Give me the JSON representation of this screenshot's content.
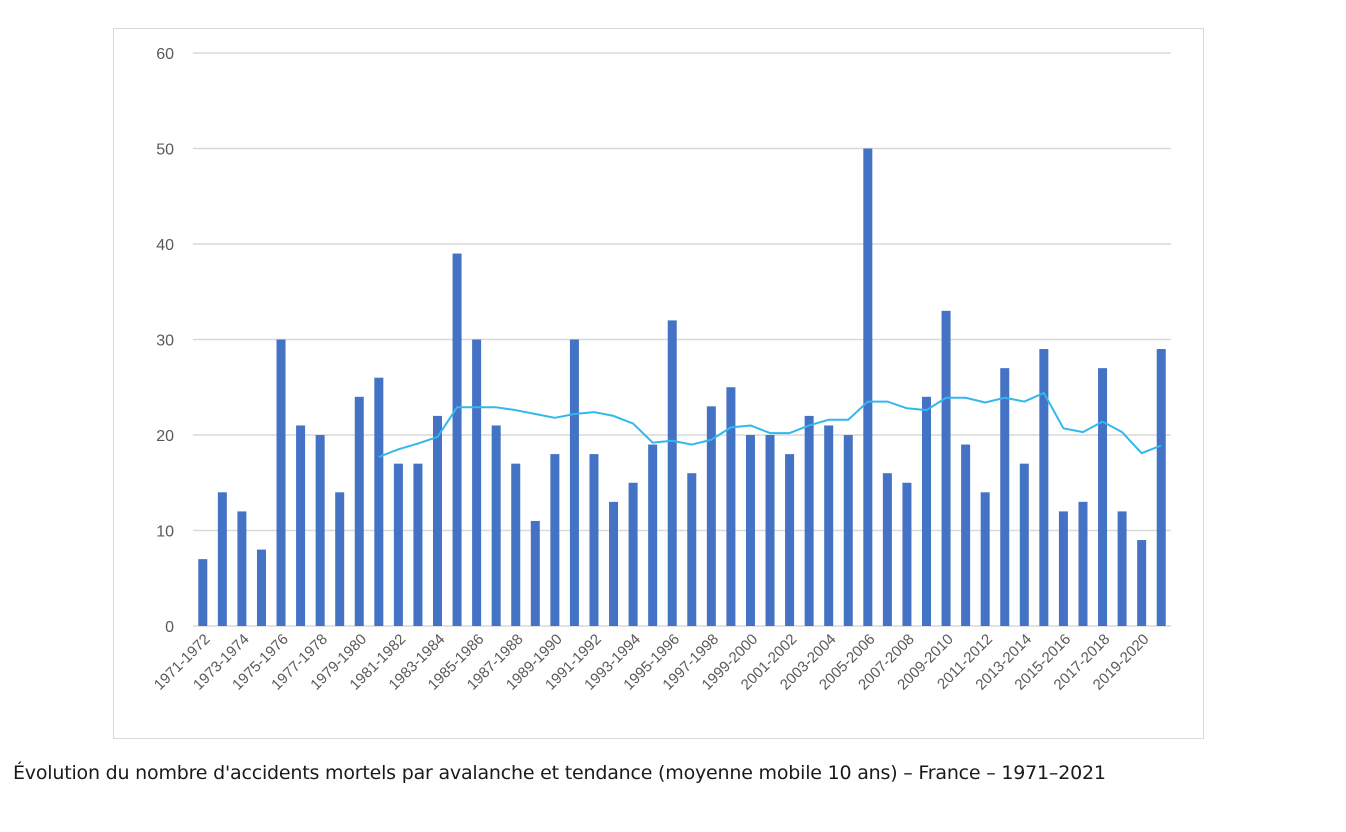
{
  "caption": "Évolution du nombre d'accidents mortels par avalanche et tendance (moyenne mobile 10 ans) – France – 1971–2021",
  "colors": {
    "bars": "#4472c4",
    "trend": "#31b8ef",
    "grid": "#d9d9d9",
    "text": "#595959"
  },
  "chart_data": {
    "type": "bar",
    "title": "",
    "xlabel": "",
    "ylabel": "",
    "ylim": [
      0,
      60
    ],
    "yticks": [
      "0",
      "10",
      "20",
      "30",
      "40",
      "50",
      "60"
    ],
    "grid": true,
    "legend": "none",
    "categories": [
      "1971-1972",
      "1972-1973",
      "1973-1974",
      "1974-1975",
      "1975-1976",
      "1976-1977",
      "1977-1978",
      "1978-1979",
      "1979-1980",
      "1980-1981",
      "1981-1982",
      "1982-1983",
      "1983-1984",
      "1984-1985",
      "1985-1986",
      "1986-1987",
      "1987-1988",
      "1988-1989",
      "1989-1990",
      "1990-1991",
      "1991-1992",
      "1992-1993",
      "1993-1994",
      "1994-1995",
      "1995-1996",
      "1996-1997",
      "1997-1998",
      "1998-1999",
      "1999-2000",
      "2000-2001",
      "2001-2002",
      "2002-2003",
      "2003-2004",
      "2004-2005",
      "2005-2006",
      "2006-2007",
      "2007-2008",
      "2008-2009",
      "2009-2010",
      "2010-2011",
      "2011-2012",
      "2012-2013",
      "2013-2014",
      "2014-2015",
      "2015-2016",
      "2016-2017",
      "2017-2018",
      "2018-2019",
      "2019-2020",
      "2020-2021"
    ],
    "tick_labels_shown": [
      "1971-1972",
      "1973-1974",
      "1975-1976",
      "1977-1978",
      "1979-1980",
      "1981-1982",
      "1983-1984",
      "1985-1986",
      "1987-1988",
      "1989-1990",
      "1991-1992",
      "1993-1994",
      "1995-1996",
      "1997-1998",
      "1999-2000",
      "2001-2002",
      "2003-2004",
      "2005-2006",
      "2007-2008",
      "2009-2010",
      "2011-2012",
      "2013-2014",
      "2015-2016",
      "2017-2018",
      "2019-2020"
    ],
    "series": [
      {
        "name": "Accidents mortels",
        "type": "bar",
        "values": [
          7,
          14,
          12,
          8,
          30,
          21,
          20,
          14,
          24,
          26,
          17,
          17,
          22,
          39,
          30,
          21,
          17,
          11,
          18,
          30,
          18,
          13,
          15,
          19,
          32,
          16,
          23,
          25,
          20,
          20,
          18,
          22,
          21,
          20,
          50,
          16,
          15,
          24,
          33,
          19,
          14,
          27,
          17,
          29,
          12,
          13,
          27,
          12,
          9,
          29
        ]
      },
      {
        "name": "Moyenne mobile 10 ans",
        "type": "line",
        "values": [
          null,
          null,
          null,
          null,
          null,
          null,
          null,
          null,
          null,
          17.7,
          18.5,
          19.1,
          19.8,
          22.9,
          22.9,
          22.9,
          22.6,
          22.2,
          21.8,
          22.2,
          22.4,
          22.0,
          21.2,
          19.2,
          19.4,
          19.0,
          19.5,
          20.8,
          21.0,
          20.2,
          20.2,
          21.0,
          21.6,
          21.6,
          23.5,
          23.5,
          22.8,
          22.6,
          23.9,
          23.9,
          23.4,
          23.9,
          23.5,
          24.4,
          20.7,
          20.3,
          21.4,
          20.3,
          18.1,
          18.9
        ]
      }
    ]
  }
}
